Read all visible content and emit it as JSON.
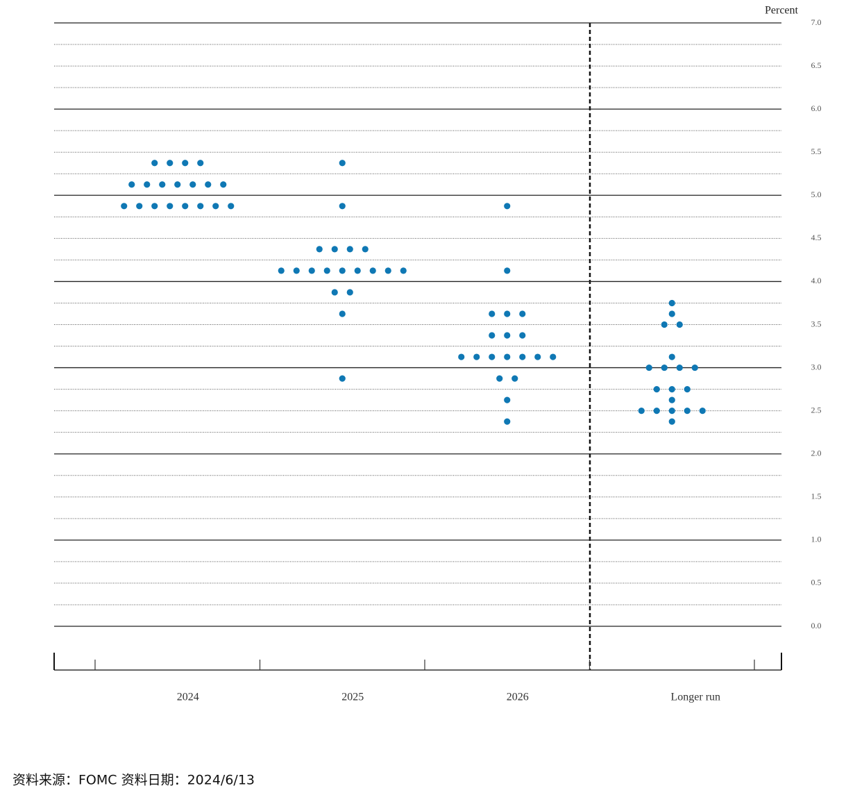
{
  "chart_data": {
    "type": "dot_plot",
    "y_label": "Percent",
    "categories": [
      "2024",
      "2025",
      "2026",
      "Longer run"
    ],
    "values": [
      [
        5.375,
        5.375,
        5.375,
        5.375,
        5.125,
        5.125,
        5.125,
        5.125,
        5.125,
        5.125,
        5.125,
        4.875,
        4.875,
        4.875,
        4.875,
        4.875,
        4.875,
        4.875,
        4.875
      ],
      [
        5.375,
        4.875,
        4.375,
        4.375,
        4.375,
        4.375,
        4.125,
        4.125,
        4.125,
        4.125,
        4.125,
        4.125,
        4.125,
        4.125,
        4.125,
        3.875,
        3.875,
        3.625,
        2.875
      ],
      [
        4.875,
        4.125,
        3.625,
        3.625,
        3.625,
        3.375,
        3.375,
        3.375,
        3.125,
        3.125,
        3.125,
        3.125,
        3.125,
        3.125,
        3.125,
        2.875,
        2.875,
        2.625,
        2.375
      ],
      [
        3.75,
        3.625,
        3.5,
        3.5,
        3.125,
        3.0,
        3.0,
        3.0,
        3.0,
        2.75,
        2.75,
        2.75,
        2.625,
        2.5,
        2.5,
        2.5,
        2.5,
        2.5,
        2.375
      ]
    ],
    "color": "#0f78b4",
    "ylim": [
      0,
      7
    ],
    "yticks": [
      {
        "value": 0,
        "label": "0.0"
      },
      0.5,
      {
        "value": 1,
        "label": "1.0"
      },
      1.5,
      {
        "value": 2,
        "label": "2.0"
      },
      2.5,
      {
        "value": 3,
        "label": "3.0"
      },
      3.5,
      {
        "value": 4,
        "label": "4.0"
      },
      4.5,
      {
        "value": 5,
        "label": "5.0"
      },
      5.5,
      {
        "value": 6,
        "label": "6.0"
      },
      6.5,
      {
        "value": 7,
        "label": "7.0"
      }
    ],
    "yticks_minor": [
      0.25,
      0.75,
      1.25,
      1.75,
      2.25,
      2.75,
      3.25,
      3.75,
      4.25,
      4.75,
      5.25,
      5.75,
      6.25,
      6.75
    ],
    "grid": true,
    "footer": "资料来源：FOMC 资料日期：2024/6/13"
  }
}
